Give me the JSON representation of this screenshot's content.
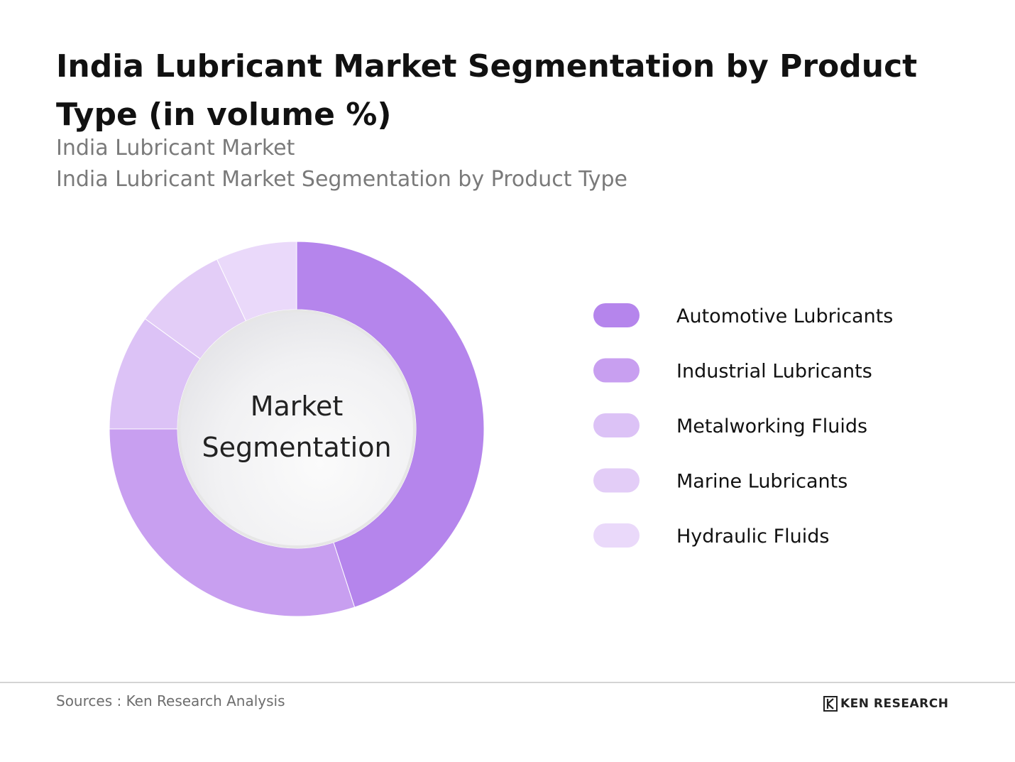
{
  "header": {
    "title": "India Lubricant Market Segmentation by Product Type (in volume %)",
    "subtitle_1": "India Lubricant Market",
    "subtitle_2": "India Lubricant Market Segmentation by Product Type"
  },
  "chart_data": {
    "type": "pie",
    "variant": "donut",
    "title": "India Lubricant Market Segmentation by Product Type (in volume %)",
    "center_label": [
      "Market",
      "Segmentation"
    ],
    "categories": [
      "Automotive Lubricants",
      "Industrial Lubricants",
      "Metalworking Fluids",
      "Marine Lubricants",
      "Hydraulic Fluids"
    ],
    "values": [
      45,
      30,
      10,
      8,
      7
    ],
    "unit": "%",
    "colors": [
      "#b585ec",
      "#c89ff0",
      "#dcc2f6",
      "#e3cdf7",
      "#ead9fa"
    ],
    "legend_position": "right"
  },
  "footer": {
    "source": "Sources : Ken Research Analysis",
    "logo_text": "KEN RESEARCH"
  }
}
